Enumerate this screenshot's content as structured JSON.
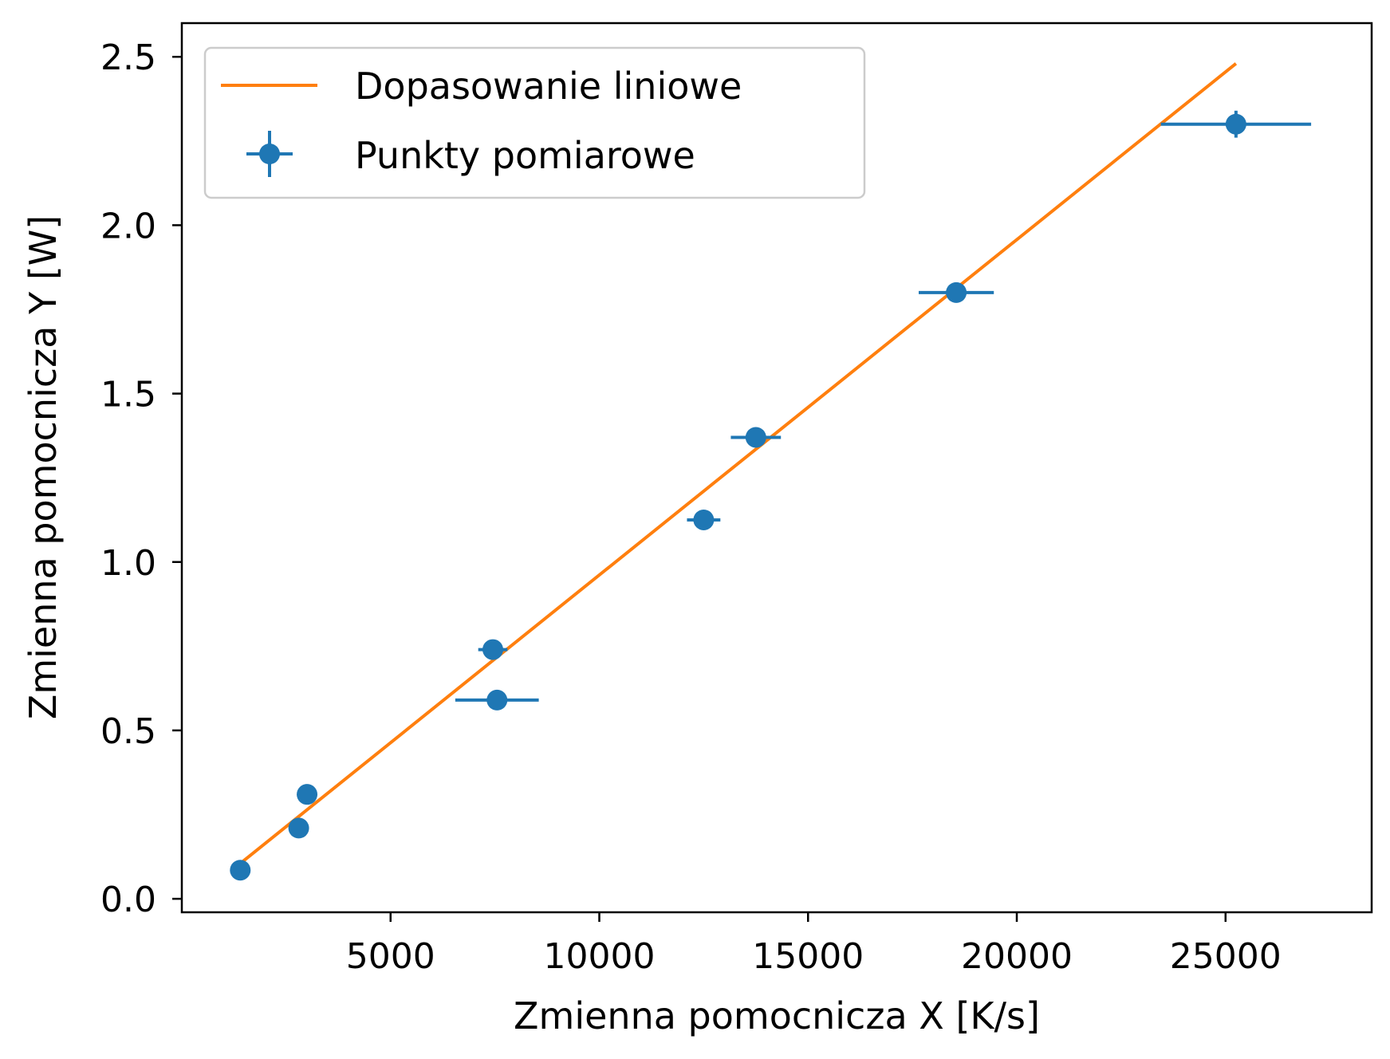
{
  "chart_data": {
    "type": "scatter",
    "xlabel": "Zmienna pomocnicza X [K/s]",
    "ylabel": "Zmienna pomocnicza Y [W]",
    "xlim": [
      0,
      28500
    ],
    "ylim": [
      -0.04,
      2.6
    ],
    "xticks": [
      5000,
      10000,
      15000,
      20000,
      25000
    ],
    "xtick_labels": [
      "5000",
      "10000",
      "15000",
      "20000",
      "25000"
    ],
    "yticks": [
      0.0,
      0.5,
      1.0,
      1.5,
      2.0,
      2.5
    ],
    "ytick_labels": [
      "0.0",
      "0.5",
      "1.0",
      "1.5",
      "2.0",
      "2.5"
    ],
    "legend_placement": "top-left",
    "grid": false,
    "series": [
      {
        "name": "Dopasowanie liniowe",
        "kind": "line",
        "color": "#ff7f0e",
        "x": [
          1450,
          25250
        ],
        "y": [
          0.11,
          2.48
        ]
      },
      {
        "name": "Punkty pomiarowe",
        "kind": "errorbar",
        "color": "#1f77b4",
        "points": [
          {
            "x": 1400,
            "y": 0.085,
            "xerr": 0,
            "yerr": 0
          },
          {
            "x": 2800,
            "y": 0.21,
            "xerr": 0,
            "yerr": 0
          },
          {
            "x": 3000,
            "y": 0.31,
            "xerr": 0,
            "yerr": 0
          },
          {
            "x": 7450,
            "y": 0.74,
            "xerr": 350,
            "yerr": 0.02
          },
          {
            "x": 7550,
            "y": 0.59,
            "xerr": 1000,
            "yerr": 0
          },
          {
            "x": 12500,
            "y": 1.125,
            "xerr": 400,
            "yerr": 0
          },
          {
            "x": 13750,
            "y": 1.37,
            "xerr": 600,
            "yerr": 0.02
          },
          {
            "x": 18550,
            "y": 1.8,
            "xerr": 900,
            "yerr": 0.03
          },
          {
            "x": 25250,
            "y": 2.3,
            "xerr": 1800,
            "yerr": 0.04
          }
        ]
      }
    ]
  }
}
